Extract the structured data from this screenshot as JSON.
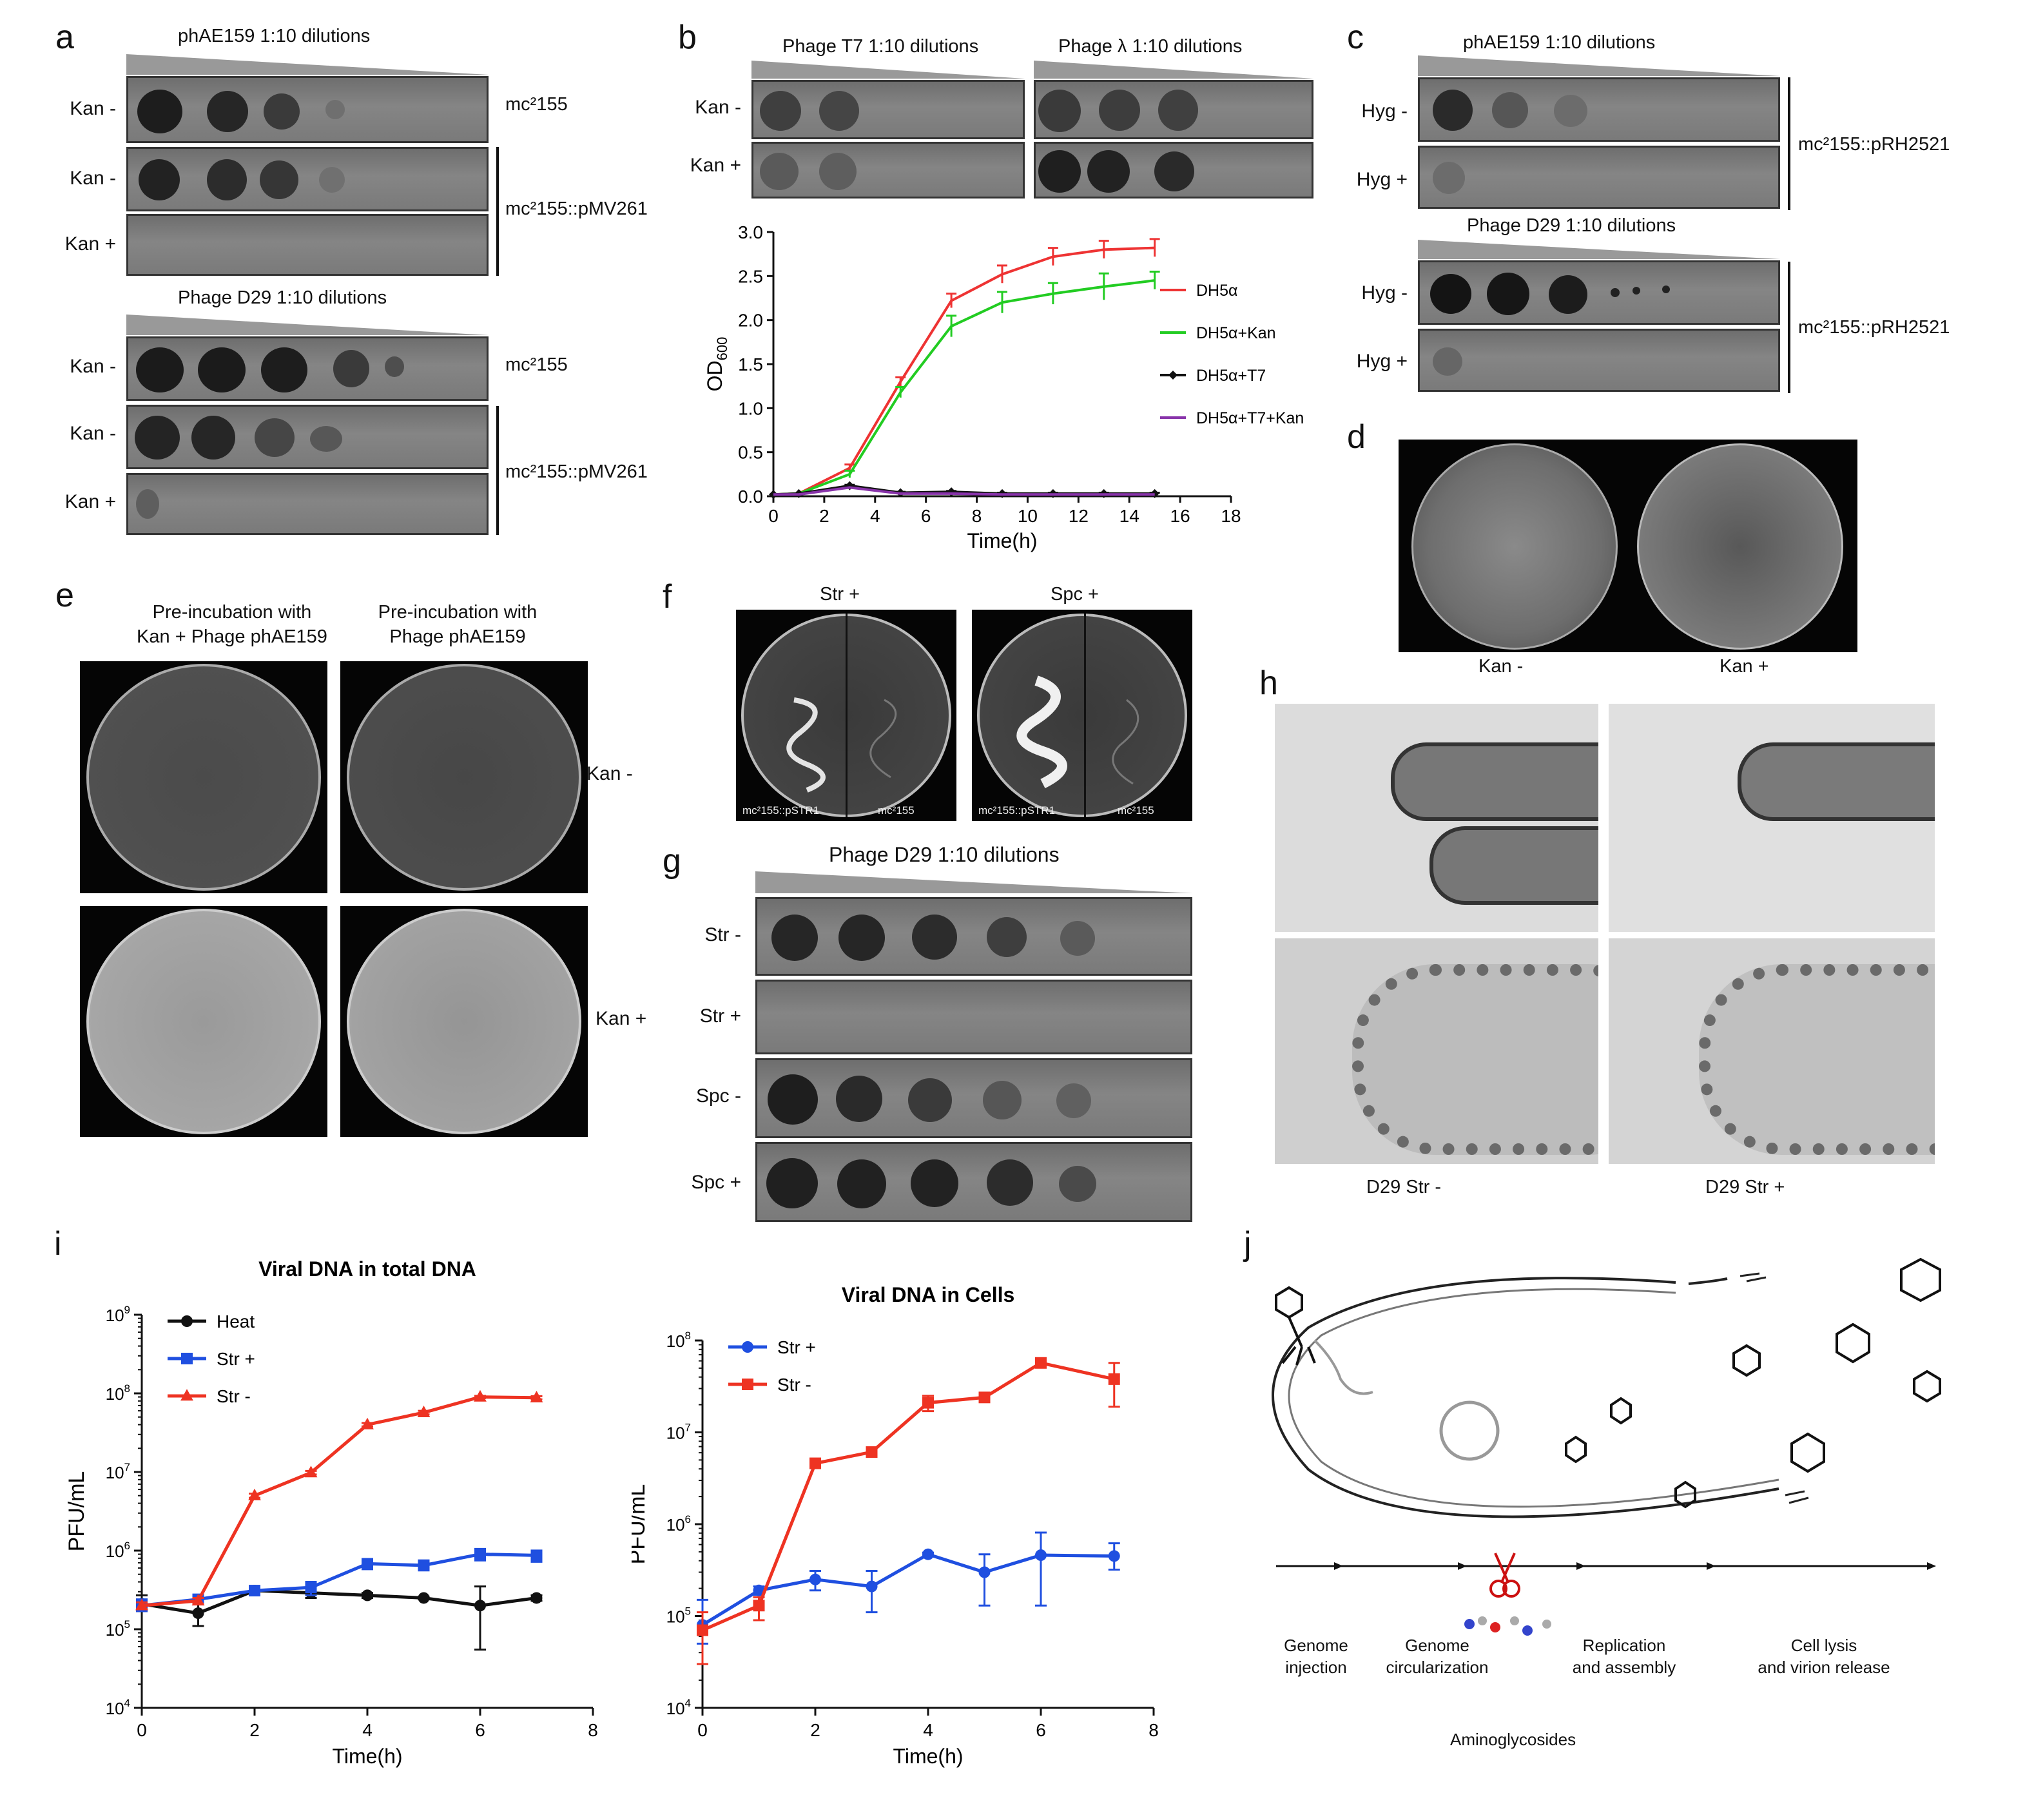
{
  "panels": {
    "a": {
      "letter": "a",
      "title_top": "phAE159 1:10 dilutions",
      "title_bottom": "Phage D29 1:10 dilutions",
      "rows_top": [
        "Kan -",
        "Kan -",
        "Kan +"
      ],
      "rows_bottom": [
        "Kan -",
        "Kan -",
        "Kan +"
      ],
      "strain_1": "mc²155",
      "strain_2": "mc²155::pMV261"
    },
    "b": {
      "letter": "b",
      "title_t7": "Phage T7  1:10 dilutions",
      "title_lambda": "Phage λ  1:10 dilutions",
      "rows": [
        "Kan -",
        "Kan +"
      ]
    },
    "c": {
      "letter": "c",
      "title_top": "phAE159 1:10 dilutions",
      "title_bottom": "Phage D29 1:10 dilutions",
      "rows_top": [
        "Hyg -",
        "Hyg +"
      ],
      "rows_bottom": [
        "Hyg -",
        "Hyg +"
      ],
      "strain": "mc²155::pRH2521"
    },
    "d": {
      "letter": "d",
      "labels": [
        "Kan -",
        "Kan +"
      ]
    },
    "e": {
      "letter": "e",
      "col_1": [
        "Pre-incubation with",
        "Kan + Phage phAE159"
      ],
      "col_2": [
        "Pre-incubation with",
        "Phage phAE159"
      ],
      "rows": [
        "Kan -",
        "Kan +"
      ]
    },
    "f": {
      "letter": "f",
      "titles": [
        "Str +",
        "Spc +"
      ],
      "plate_left": "mc²155::pSTR1",
      "plate_right": "mc²155"
    },
    "g": {
      "letter": "g",
      "title": "Phage D29 1:10 dilutions",
      "rows": [
        "Str -",
        "Str +",
        "Spc -",
        "Spc +"
      ]
    },
    "h": {
      "letter": "h",
      "labels": [
        "D29  Str -",
        "D29  Str +"
      ]
    },
    "i": {
      "letter": "i"
    },
    "j": {
      "letter": "j",
      "steps": [
        [
          "Genome",
          "injection"
        ],
        [
          "Genome",
          "circularization"
        ],
        [
          "Replication",
          "and assembly"
        ],
        [
          "Cell lysis",
          "and virion release"
        ]
      ],
      "drug_label": "Aminoglycosides"
    }
  },
  "chart_data": [
    {
      "id": "b-growth",
      "type": "line",
      "xlabel": "Time(h)",
      "ylabel": "OD600",
      "ylabel_main": "OD",
      "ylabel_sub": "600",
      "xlim": [
        0,
        18
      ],
      "ylim": [
        0,
        3.0
      ],
      "xticks": [
        0,
        2,
        4,
        6,
        8,
        10,
        12,
        14,
        16,
        18
      ],
      "yticks": [
        0.0,
        0.5,
        1.0,
        1.5,
        2.0,
        2.5,
        3.0
      ],
      "ytick_labels": [
        "0.0",
        "0.5",
        "1.0",
        "1.5",
        "2.0",
        "2.5",
        "3.0"
      ],
      "x": [
        0,
        1,
        3,
        5,
        7,
        9,
        11,
        13,
        15
      ],
      "series": [
        {
          "name": "DH5α",
          "color": "#ee3333",
          "marker": "line",
          "values": [
            0.02,
            0.03,
            0.32,
            1.3,
            2.22,
            2.52,
            2.72,
            2.8,
            2.82
          ],
          "err": [
            0,
            0,
            0.04,
            0.05,
            0.08,
            0.1,
            0.1,
            0.1,
            0.1
          ]
        },
        {
          "name": "DH5α+Kan",
          "color": "#22cc22",
          "marker": "line",
          "values": [
            0.02,
            0.03,
            0.25,
            1.18,
            1.93,
            2.2,
            2.3,
            2.38,
            2.45
          ],
          "err": [
            0,
            0,
            0.04,
            0.06,
            0.12,
            0.12,
            0.12,
            0.15,
            0.1
          ]
        },
        {
          "name": "DH5α+T7",
          "color": "#111111",
          "marker": "diamond",
          "values": [
            0.02,
            0.03,
            0.12,
            0.04,
            0.05,
            0.03,
            0.03,
            0.03,
            0.03
          ],
          "err": [
            0,
            0,
            0.01,
            0.01,
            0.01,
            0.01,
            0.01,
            0.01,
            0.01
          ]
        },
        {
          "name": "DH5α+T7+Kan",
          "color": "#8833aa",
          "marker": "line",
          "values": [
            0.02,
            0.02,
            0.1,
            0.03,
            0.03,
            0.02,
            0.02,
            0.02,
            0.02
          ],
          "err": [
            0,
            0,
            0,
            0,
            0,
            0,
            0,
            0,
            0
          ]
        }
      ]
    },
    {
      "id": "i-total",
      "type": "line",
      "title": "Viral DNA in total DNA",
      "xlabel": "Time(h)",
      "ylabel": "PFU/mL",
      "yscale": "log",
      "xlim": [
        0,
        8
      ],
      "ylim": [
        10000,
        1000000000
      ],
      "xticks": [
        0,
        2,
        4,
        6,
        8
      ],
      "ytick_base": "10",
      "ytick_exps": [
        "4",
        "5",
        "6",
        "7",
        "8",
        "9"
      ],
      "x": [
        0,
        1,
        2,
        3,
        4,
        5,
        6,
        7
      ],
      "series": [
        {
          "name": "Heat",
          "color": "#111111",
          "marker": "circle",
          "values": [
            210000,
            160000,
            310000,
            290000,
            270000,
            250000,
            200000,
            250000
          ],
          "lo": [
            170000,
            110000,
            270000,
            250000,
            250000,
            240000,
            55000,
            230000
          ],
          "hi": [
            270000,
            230000,
            350000,
            330000,
            290000,
            260000,
            350000,
            270000
          ]
        },
        {
          "name": "Str +",
          "color": "#1f4fe0",
          "marker": "square",
          "values": [
            200000,
            240000,
            310000,
            340000,
            680000,
            650000,
            900000,
            870000
          ],
          "lo": [
            170000,
            220000,
            270000,
            270000,
            580000,
            560000,
            750000,
            720000
          ],
          "hi": [
            240000,
            260000,
            350000,
            400000,
            780000,
            750000,
            1050000,
            1000000
          ]
        },
        {
          "name": "Str -",
          "color": "#ee3322",
          "marker": "triangle",
          "values": [
            200000,
            230000,
            5000000,
            9800000,
            40000000,
            57000000,
            90000000,
            88000000
          ],
          "lo": [
            180000,
            210000,
            4700000,
            9300000,
            38000000,
            54000000,
            87000000,
            84000000
          ],
          "hi": [
            220000,
            250000,
            5300000,
            10300000,
            42000000,
            60000000,
            93000000,
            92000000
          ]
        }
      ],
      "legend_position": "top-left"
    },
    {
      "id": "i-cells",
      "type": "line",
      "title": "Viral DNA in Cells",
      "xlabel": "Time(h)",
      "ylabel": "PFU/mL",
      "yscale": "log",
      "xlim": [
        0,
        8
      ],
      "ylim": [
        10000,
        100000000
      ],
      "xticks": [
        0,
        2,
        4,
        6,
        8
      ],
      "ytick_base": "10",
      "ytick_exps": [
        "4",
        "5",
        "6",
        "7",
        "8"
      ],
      "x": [
        0,
        1,
        2,
        3,
        4,
        5,
        6,
        7.3
      ],
      "series": [
        {
          "name": "Str +",
          "color": "#1f4fe0",
          "marker": "circle",
          "values": [
            80000,
            190000,
            250000,
            210000,
            470000,
            300000,
            460000,
            450000
          ],
          "lo": [
            50000,
            170000,
            190000,
            110000,
            450000,
            130000,
            130000,
            320000
          ],
          "hi": [
            150000,
            210000,
            310000,
            310000,
            490000,
            470000,
            810000,
            620000
          ]
        },
        {
          "name": "Str -",
          "color": "#ee3322",
          "marker": "square",
          "values": [
            70000,
            130000,
            4600000,
            6100000,
            21000000,
            24000000,
            57000000,
            38000000
          ],
          "lo": [
            30000,
            90000,
            4400000,
            5900000,
            17000000,
            22000000,
            54000000,
            19000000
          ],
          "hi": [
            110000,
            160000,
            4800000,
            6300000,
            25000000,
            26000000,
            60000000,
            57000000
          ]
        }
      ],
      "legend_position": "top-left"
    }
  ]
}
